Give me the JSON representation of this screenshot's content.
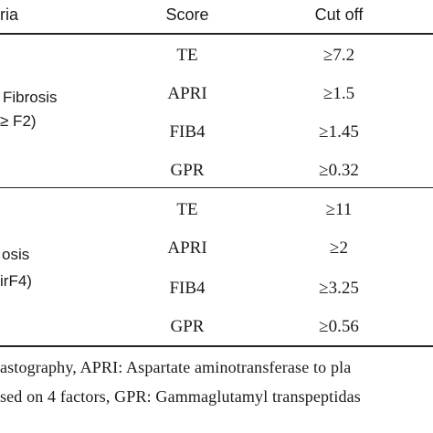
{
  "table": {
    "headers": {
      "criteria": "ria",
      "score": "Score",
      "cutoff": "Cut off"
    },
    "groups": [
      {
        "label_line1": "Fibrosis",
        "label_line2": "≥ F2)",
        "rows": [
          {
            "score": "TE",
            "cutoff": "≥7.2"
          },
          {
            "score": "APRI",
            "cutoff": "≥1.5"
          },
          {
            "score": "FIB4",
            "cutoff": "≥1.45"
          },
          {
            "score": "GPR",
            "cutoff": "≥0.32"
          }
        ]
      },
      {
        "label_line1": "osis",
        "label_line2": "irF4)",
        "rows": [
          {
            "score": "TE",
            "cutoff": "≥11"
          },
          {
            "score": "APRI",
            "cutoff": "≥2"
          },
          {
            "score": "FIB4",
            "cutoff": "≥3.25"
          },
          {
            "score": "GPR",
            "cutoff": "≥0.56"
          }
        ]
      }
    ]
  },
  "footnote": {
    "line1": "astography, APRI: Aspartate aminotransferase to pla",
    "line2": "sed on 4 factors, GPR: Gammaglutamyl transpeptidas"
  }
}
